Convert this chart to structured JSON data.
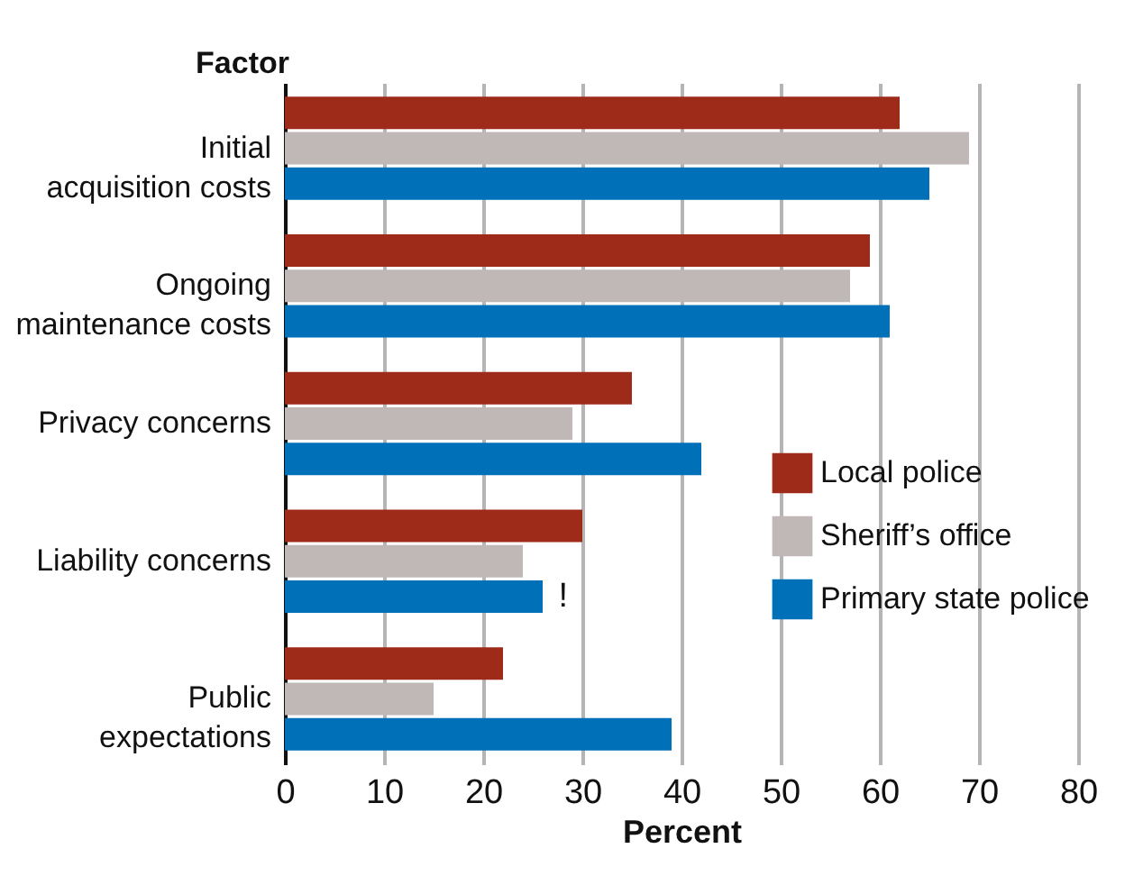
{
  "chart_data": {
    "type": "bar",
    "orientation": "horizontal",
    "ylabel": "Factor",
    "xlabel": "Percent",
    "categories": [
      "Initial\nacquisition costs",
      "Ongoing\nmaintenance costs",
      "Privacy concerns",
      "Liability concerns",
      "Public\nexpectations"
    ],
    "series": [
      {
        "name": "Local police",
        "color": "#9e2a1a",
        "values": [
          62,
          59,
          35,
          30,
          22
        ]
      },
      {
        "name": "Sheriff’s office",
        "color": "#c0b8b6",
        "values": [
          69,
          57,
          29,
          24,
          15
        ]
      },
      {
        "name": "Primary state police",
        "color": "#0070b8",
        "values": [
          65,
          61,
          42,
          26,
          39
        ]
      }
    ],
    "xlim": [
      0,
      80
    ],
    "xticks": [
      0,
      10,
      20,
      30,
      40,
      50,
      60,
      70,
      80
    ],
    "grid": "x",
    "legend": "right",
    "annotations": [
      "!"
    ]
  }
}
